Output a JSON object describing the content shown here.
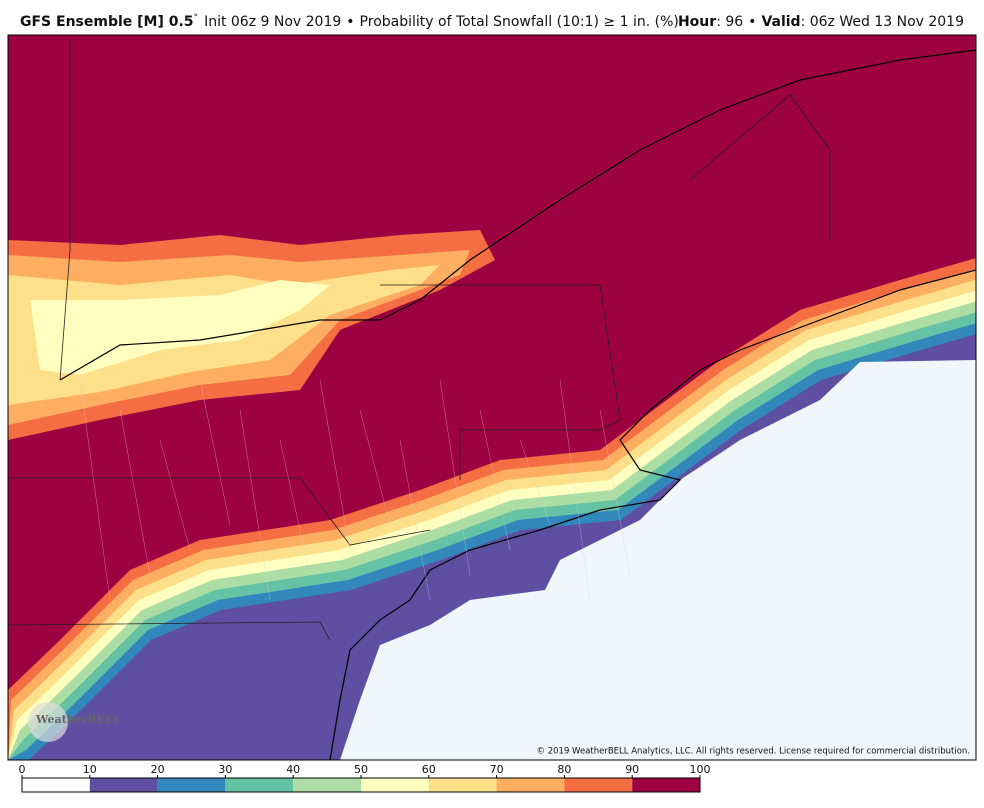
{
  "header": {
    "model": "GFS Ensemble [M] 0.5",
    "degree": "°",
    "init": "Init 06z 9 Nov 2019",
    "sep1": "•",
    "product": "Probability of Total Snowfall (10:1) ≥ 1 in. (%)",
    "hour_label": "Hour",
    "hour_value": ": 96",
    "sep2": "•",
    "valid_label": "Valid",
    "valid_value": ": 06z Wed 13 Nov 2019"
  },
  "map": {
    "copyright": "© 2019 WeatherBELL Analytics, LLC. All rights reserved. License required for commercial distribution.",
    "logo": "WeatherBELL"
  },
  "colorbar": {
    "ticks": [
      0,
      10,
      20,
      30,
      40,
      50,
      60,
      70,
      80,
      90,
      100
    ],
    "colors": [
      "#ffffff",
      "#5e4fa2",
      "#3288bd",
      "#66c2a5",
      "#abdda4",
      "#ffffbf",
      "#fee08b",
      "#fdae61",
      "#f46d43",
      "#9e0142"
    ]
  }
}
